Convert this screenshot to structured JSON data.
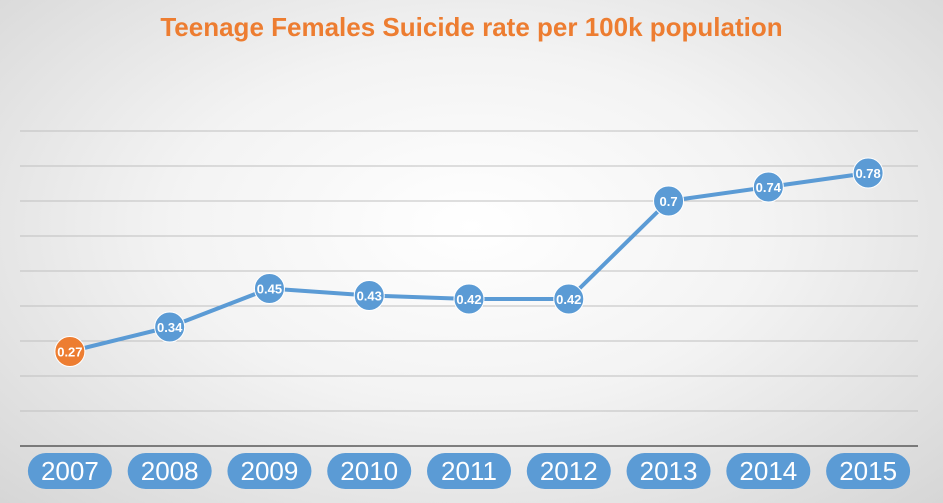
{
  "chart_data": {
    "type": "line",
    "title": "Teenage Females Suicide rate per 100k population",
    "xlabel": "",
    "ylabel": "",
    "categories": [
      "2007",
      "2008",
      "2009",
      "2010",
      "2011",
      "2012",
      "2013",
      "2014",
      "2015"
    ],
    "series": [
      {
        "values": [
          0.27,
          0.34,
          0.45,
          0.43,
          0.42,
          0.42,
          0.7,
          0.74,
          0.78
        ],
        "labels": [
          "0.27",
          "0.34",
          "0.45",
          "0.43",
          "0.42",
          "0.42",
          "0.7",
          "0.74",
          "0.78"
        ]
      }
    ],
    "ylim": [
      0.0,
      0.9
    ],
    "grid": true,
    "legend": "none",
    "colors": {
      "title": "#ed7d31",
      "line": "#5b9bd5",
      "marker": "#5b9bd5",
      "highlight_marker": "#ed7d31",
      "tick_background": "#5b9bd5"
    },
    "highlight_index": 0
  }
}
